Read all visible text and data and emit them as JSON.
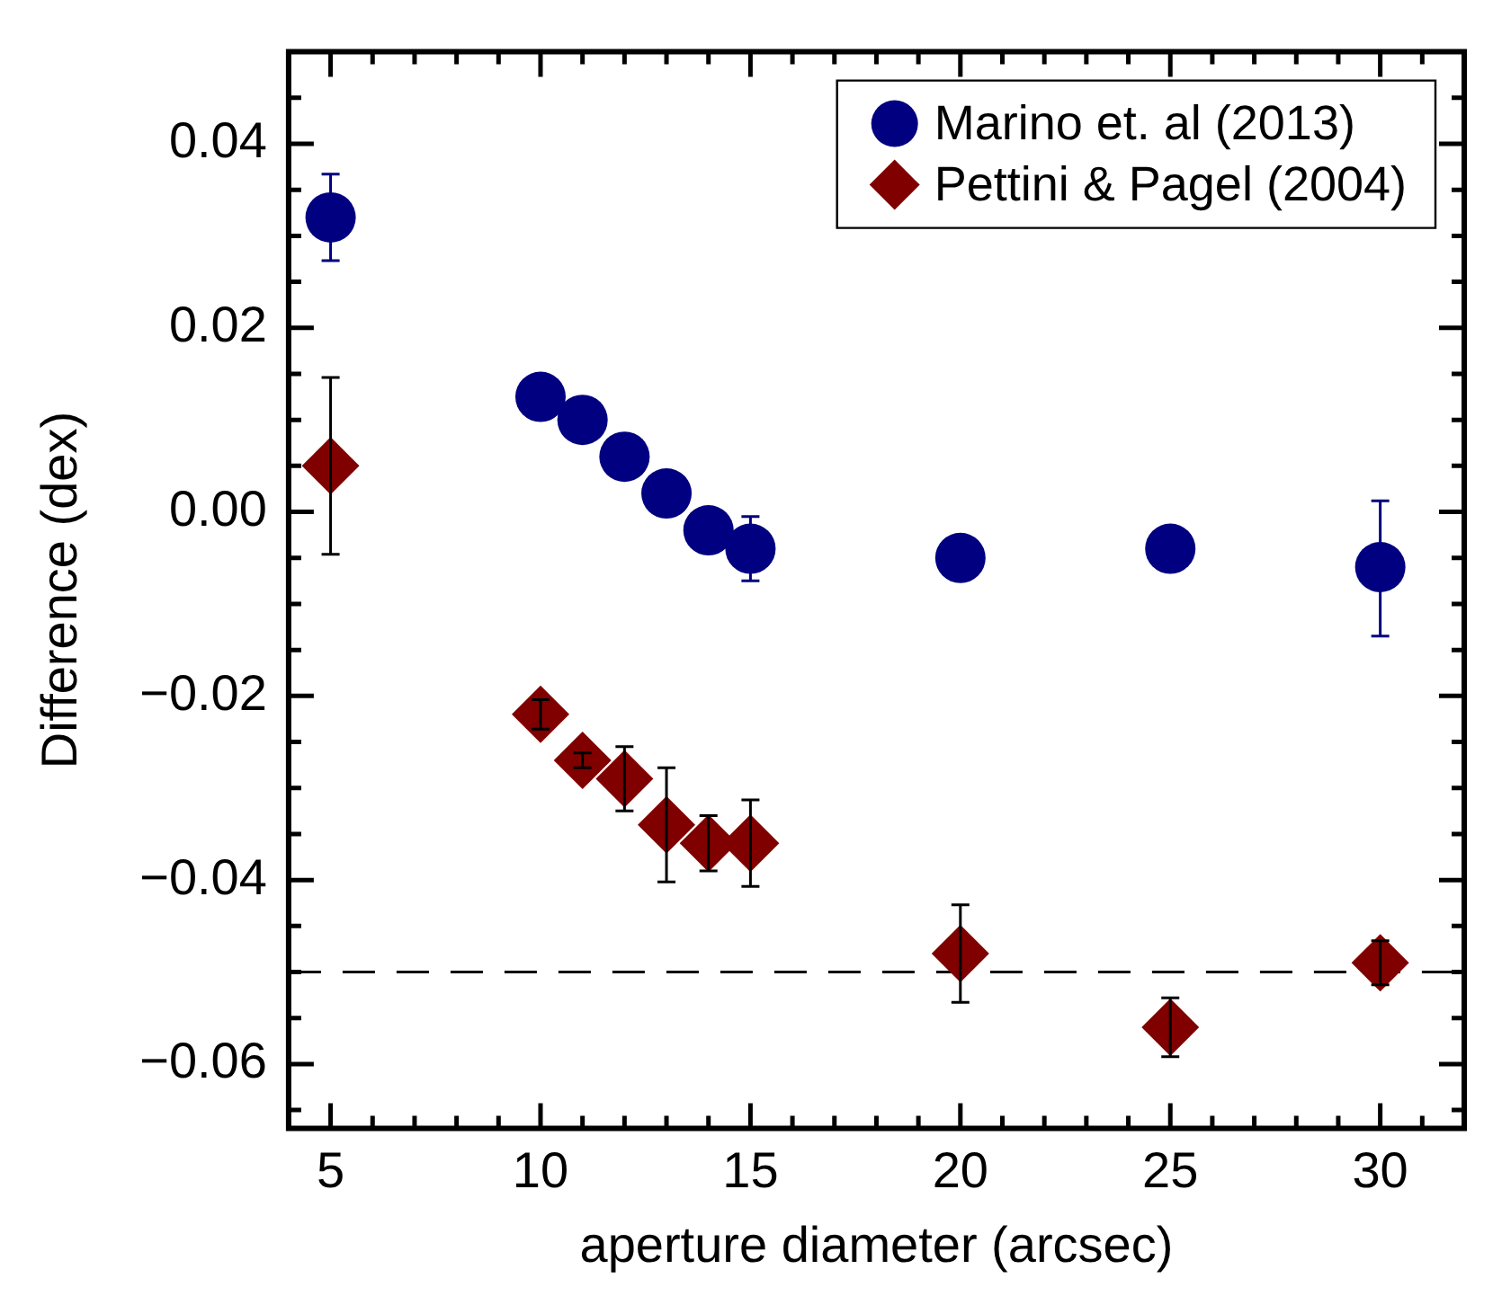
{
  "chart_data": {
    "type": "scatter",
    "xlabel": "aperture diameter (arcsec)",
    "ylabel": "Difference (dex)",
    "xlim": [
      4,
      32
    ],
    "xticks": [
      5,
      {
        "value": 6,
        "label": null
      },
      {
        "value": 7,
        "label": null
      },
      {
        "value": 8,
        "label": null
      },
      {
        "value": 9,
        "label": null
      },
      10,
      {
        "value": 11,
        "label": null
      },
      {
        "value": 12,
        "label": null
      },
      {
        "value": 13,
        "label": null
      },
      {
        "value": 14,
        "label": null
      },
      15,
      {
        "value": 16,
        "label": null
      },
      {
        "value": 17,
        "label": null
      },
      {
        "value": 18,
        "label": null
      },
      {
        "value": 19,
        "label": null
      },
      20,
      {
        "value": 21,
        "label": null
      },
      {
        "value": 22,
        "label": null
      },
      {
        "value": 23,
        "label": null
      },
      {
        "value": 24,
        "label": null
      },
      25,
      {
        "value": 26,
        "label": null
      },
      {
        "value": 27,
        "label": null
      },
      {
        "value": 28,
        "label": null
      },
      {
        "value": 29,
        "label": null
      },
      30,
      {
        "value": 31,
        "label": null
      }
    ],
    "ylim": [
      -0.067,
      0.05
    ],
    "yticks": [
      {
        "value": -0.065,
        "label": null
      },
      {
        "value": -0.06,
        "label": "−0.06"
      },
      {
        "value": -0.055,
        "label": null
      },
      {
        "value": -0.05,
        "label": null
      },
      {
        "value": -0.045,
        "label": null
      },
      {
        "value": -0.04,
        "label": "−0.04"
      },
      {
        "value": -0.035,
        "label": null
      },
      {
        "value": -0.03,
        "label": null
      },
      {
        "value": -0.025,
        "label": null
      },
      {
        "value": -0.02,
        "label": "−0.02"
      },
      {
        "value": -0.015,
        "label": null
      },
      {
        "value": -0.01,
        "label": null
      },
      {
        "value": -0.005,
        "label": null
      },
      {
        "value": 0,
        "label": "0.00"
      },
      {
        "value": 0.005,
        "label": null
      },
      {
        "value": 0.01,
        "label": null
      },
      {
        "value": 0.015,
        "label": null
      },
      {
        "value": 0.02,
        "label": "0.02"
      },
      {
        "value": 0.025,
        "label": null
      },
      {
        "value": 0.03,
        "label": null
      },
      {
        "value": 0.035,
        "label": null
      },
      {
        "value": 0.04,
        "label": "0.04"
      },
      {
        "value": 0.045,
        "label": null
      }
    ],
    "grid": false,
    "legend": "top right",
    "ref_lines": [
      {
        "axis": "y",
        "value": -0.05,
        "color": "#000000",
        "line_style": "dashed"
      }
    ],
    "series": [
      {
        "name": "Marino et. al (2013)",
        "color": "#000080",
        "marker": "circle",
        "x": [
          5,
          10,
          11,
          12,
          13,
          14,
          15,
          20,
          25,
          30
        ],
        "values": [
          0.032,
          0.0125,
          0.01,
          0.006,
          0.002,
          -0.002,
          -0.004,
          -0.005,
          -0.004,
          -0.006
        ],
        "errors": [
          0.0047,
          null,
          null,
          null,
          null,
          null,
          0.0035,
          null,
          null,
          [
            -0.0135,
            0.0012
          ]
        ]
      },
      {
        "name": "Pettini & Pagel (2004)",
        "color": "#800000",
        "marker": "diamond",
        "x": [
          5,
          10,
          11,
          12,
          13,
          14,
          15,
          20,
          25,
          30
        ],
        "values": [
          0.005,
          -0.022,
          -0.027,
          -0.029,
          -0.034,
          -0.036,
          -0.036,
          -0.048,
          -0.056,
          -0.049
        ],
        "errors": [
          0.0096,
          0.0016,
          0.0008,
          0.0035,
          0.0062,
          0.003,
          0.0047,
          0.0053,
          0.0032,
          0.0024
        ]
      }
    ]
  }
}
